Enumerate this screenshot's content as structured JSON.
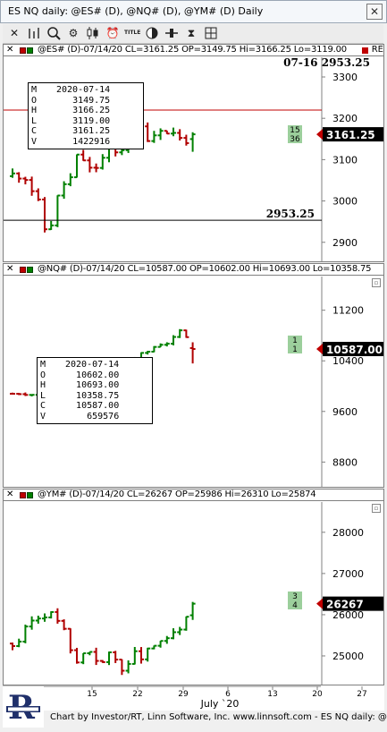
{
  "window": {
    "title": "ES NQ daily: @ES# (D), @NQ# (D), @YM# (D) Daily",
    "close_glyph": "✕"
  },
  "toolbar": {
    "icons": [
      "crosshair-icon",
      "bar-chart-icon",
      "zoom-icon",
      "settings-icon",
      "candlestick-icon",
      "alarm-clock-icon",
      "title-icon",
      "compare-icon",
      "slider-icon",
      "hourglass-icon",
      "grid-icon"
    ],
    "title_label": "TITLE"
  },
  "panels": [
    {
      "id": "es",
      "header": "@ES# (D)-07/14/20 CL=3161.25 OP=3149.75 Hi=3166.25 Lo=3119.00",
      "header_right": "RE",
      "top_annotation": "07-16 2953.25",
      "hline_label": "2953.25",
      "last_price": "3161.25",
      "counts": [
        "15",
        "36"
      ],
      "y_ticks": [
        {
          "value": 3300,
          "label": "3300"
        },
        {
          "value": 3200,
          "label": "3200"
        },
        {
          "value": 3100,
          "label": "3100"
        },
        {
          "value": 3000,
          "label": "3000"
        },
        {
          "value": 2900,
          "label": "2900"
        }
      ],
      "tooltip": [
        {
          "k": "M",
          "v": "2020-07-14"
        },
        {
          "k": "O",
          "v": "3149.75"
        },
        {
          "k": "H",
          "v": "3166.25"
        },
        {
          "k": "L",
          "v": "3119.00"
        },
        {
          "k": "C",
          "v": "3161.25"
        },
        {
          "k": "V",
          "v": "1422916"
        }
      ]
    },
    {
      "id": "nq",
      "header": "@NQ# (D)-07/14/20 CL=10587.00 OP=10602.00 Hi=10693.00 Lo=10358.75",
      "last_price": "10587.00",
      "counts": [
        "1",
        "1"
      ],
      "y_ticks": [
        {
          "value": 11200,
          "label": "11200"
        },
        {
          "value": 10400,
          "label": "10400"
        },
        {
          "value": 9600,
          "label": "9600"
        },
        {
          "value": 8800,
          "label": "8800"
        }
      ],
      "tooltip": [
        {
          "k": "M",
          "v": "2020-07-14"
        },
        {
          "k": "O",
          "v": "10602.00"
        },
        {
          "k": "H",
          "v": "10693.00"
        },
        {
          "k": "L",
          "v": "10358.75"
        },
        {
          "k": "C",
          "v": "10587.00"
        },
        {
          "k": "V",
          "v": "659576"
        }
      ]
    },
    {
      "id": "ym",
      "header": "@YM# (D)-07/14/20 CL=26267 OP=25986 Hi=26310 Lo=25874",
      "last_price": "26267",
      "counts": [
        "3",
        "4"
      ],
      "y_ticks": [
        {
          "value": 28000,
          "label": "28000"
        },
        {
          "value": 27000,
          "label": "27000"
        },
        {
          "value": 26000,
          "label": "26000"
        },
        {
          "value": 25000,
          "label": "25000"
        }
      ]
    }
  ],
  "x_axis": {
    "ticks": [
      {
        "label": "15"
      },
      {
        "label": "22"
      },
      {
        "label": "29"
      },
      {
        "label": "6"
      },
      {
        "label": "13"
      },
      {
        "label": "20"
      },
      {
        "label": "27"
      }
    ],
    "month_label": "July `20"
  },
  "footer": {
    "text": "Chart by Investor/RT, Linn Software, Inc. www.linnsoft.com - ES NQ daily: @ES"
  },
  "colors": {
    "up": "#008000",
    "down": "#b00000",
    "last_marker": "#c00000",
    "count_bg": "#9ccf9c"
  }
}
